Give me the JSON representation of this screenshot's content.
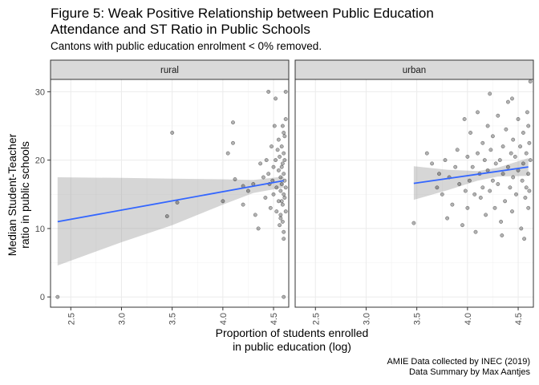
{
  "title_line1": "Figure 5: Weak Positive Relationship between Public Education",
  "title_line2": "Attendance and ST Ratio in Public Schools",
  "subtitle": "Cantons with public education enrolment < 0% removed.",
  "caption_line1": "AMIE Data collected by INEC (2019)",
  "caption_line2": "Data Summary by Max Aantjes",
  "chart_data": {
    "type": "scatter",
    "xlabel_line1": "Proportion of students enrolled",
    "xlabel_line2": "in public education (log)",
    "ylabel_line1": "Median Student-Teacher",
    "ylabel_line2": "ratio in public schools",
    "xlim": [
      2.3,
      4.65
    ],
    "ylim": [
      -1.5,
      31.8
    ],
    "x_ticks": [
      "2.5",
      "3.0",
      "3.5",
      "4.0",
      "4.5"
    ],
    "y_ticks": [
      "0",
      "10",
      "20",
      "30"
    ],
    "grid": true,
    "point_color": "#000000",
    "line_color": "#3366FF",
    "ribbon_color": "#999999",
    "panels": [
      {
        "name": "rural",
        "fit": {
          "x": [
            2.37,
            4.6
          ],
          "y": [
            11.0,
            17.0
          ]
        },
        "ribbon": {
          "x": [
            2.37,
            3.0,
            3.5,
            4.0,
            4.3,
            4.6
          ],
          "lower": [
            4.6,
            8.0,
            10.5,
            13.5,
            15.2,
            16.0
          ],
          "upper": [
            17.5,
            17.4,
            17.3,
            17.2,
            17.1,
            17.6
          ]
        },
        "points": [
          [
            2.37,
            0.0
          ],
          [
            3.5,
            24.0
          ],
          [
            3.45,
            11.8
          ],
          [
            3.55,
            13.8
          ],
          [
            4.0,
            14.0
          ],
          [
            4.05,
            21.0
          ],
          [
            4.1,
            25.5
          ],
          [
            4.1,
            22.5
          ],
          [
            4.12,
            17.2
          ],
          [
            4.2,
            16.2
          ],
          [
            4.2,
            13.5
          ],
          [
            4.25,
            15.5
          ],
          [
            4.3,
            16.5
          ],
          [
            4.32,
            12.0
          ],
          [
            4.35,
            10.0
          ],
          [
            4.37,
            19.5
          ],
          [
            4.4,
            17.5
          ],
          [
            4.42,
            14.5
          ],
          [
            4.43,
            20.0
          ],
          [
            4.45,
            30.0
          ],
          [
            4.45,
            18.0
          ],
          [
            4.46,
            16.5
          ],
          [
            4.47,
            13.0
          ],
          [
            4.48,
            22.0
          ],
          [
            4.49,
            17.0
          ],
          [
            4.5,
            15.0
          ],
          [
            4.5,
            19.0
          ],
          [
            4.51,
            25.0
          ],
          [
            4.52,
            29.0
          ],
          [
            4.52,
            20.0
          ],
          [
            4.53,
            12.5
          ],
          [
            4.53,
            16.0
          ],
          [
            4.54,
            21.5
          ],
          [
            4.55,
            23.0
          ],
          [
            4.55,
            18.5
          ],
          [
            4.55,
            14.0
          ],
          [
            4.56,
            10.5
          ],
          [
            4.56,
            20.5
          ],
          [
            4.57,
            17.5
          ],
          [
            4.57,
            15.5
          ],
          [
            4.57,
            12.0
          ],
          [
            4.58,
            22.0
          ],
          [
            4.58,
            19.0
          ],
          [
            4.58,
            16.5
          ],
          [
            4.59,
            13.5
          ],
          [
            4.59,
            11.0
          ],
          [
            4.59,
            25.0
          ],
          [
            4.6,
            18.0
          ],
          [
            4.6,
            15.0
          ],
          [
            4.6,
            21.0
          ],
          [
            4.6,
            9.5
          ],
          [
            4.6,
            8.5
          ],
          [
            4.61,
            17.0
          ],
          [
            4.61,
            20.0
          ],
          [
            4.61,
            14.5
          ],
          [
            4.62,
            26.0
          ],
          [
            4.62,
            16.0
          ],
          [
            4.62,
            12.5
          ],
          [
            4.62,
            30.0
          ],
          [
            4.6,
            0.0
          ],
          [
            4.61,
            23.5
          ],
          [
            4.59,
            19.5
          ],
          [
            4.58,
            14.0
          ],
          [
            4.57,
            11.5
          ],
          [
            4.6,
            24.0
          ]
        ]
      },
      {
        "name": "urban",
        "fit": {
          "x": [
            3.47,
            4.6
          ],
          "y": [
            16.6,
            19.0
          ]
        },
        "ribbon": {
          "x": [
            3.47,
            3.8,
            4.1,
            4.3,
            4.6
          ],
          "lower": [
            14.2,
            15.6,
            17.0,
            17.6,
            17.7
          ],
          "upper": [
            19.1,
            18.6,
            18.4,
            18.9,
            20.3
          ]
        },
        "points": [
          [
            3.47,
            10.8
          ],
          [
            3.6,
            21.0
          ],
          [
            3.65,
            19.5
          ],
          [
            3.7,
            16.0
          ],
          [
            3.72,
            18.0
          ],
          [
            3.75,
            15.0
          ],
          [
            3.78,
            20.0
          ],
          [
            3.8,
            11.5
          ],
          [
            3.82,
            17.5
          ],
          [
            3.85,
            13.5
          ],
          [
            3.88,
            19.0
          ],
          [
            3.9,
            21.5
          ],
          [
            3.92,
            16.5
          ],
          [
            3.95,
            10.5
          ],
          [
            3.97,
            26.0
          ],
          [
            3.98,
            15.5
          ],
          [
            4.0,
            20.5
          ],
          [
            4.0,
            13.0
          ],
          [
            4.02,
            17.0
          ],
          [
            4.03,
            24.0
          ],
          [
            4.05,
            19.0
          ],
          [
            4.07,
            15.0
          ],
          [
            4.08,
            9.5
          ],
          [
            4.1,
            21.0
          ],
          [
            4.1,
            27.0
          ],
          [
            4.12,
            18.0
          ],
          [
            4.13,
            14.5
          ],
          [
            4.15,
            22.5
          ],
          [
            4.15,
            16.0
          ],
          [
            4.17,
            20.0
          ],
          [
            4.18,
            12.0
          ],
          [
            4.2,
            25.0
          ],
          [
            4.2,
            18.5
          ],
          [
            4.22,
            29.7
          ],
          [
            4.22,
            15.5
          ],
          [
            4.23,
            21.5
          ],
          [
            4.25,
            17.0
          ],
          [
            4.25,
            23.5
          ],
          [
            4.27,
            13.0
          ],
          [
            4.28,
            19.5
          ],
          [
            4.3,
            26.5
          ],
          [
            4.3,
            16.5
          ],
          [
            4.32,
            20.0
          ],
          [
            4.33,
            11.0
          ],
          [
            4.35,
            22.0
          ],
          [
            4.35,
            18.0
          ],
          [
            4.37,
            14.0
          ],
          [
            4.38,
            24.5
          ],
          [
            4.4,
            19.0
          ],
          [
            4.4,
            28.5
          ],
          [
            4.42,
            16.0
          ],
          [
            4.43,
            21.0
          ],
          [
            4.44,
            12.5
          ],
          [
            4.45,
            23.0
          ],
          [
            4.45,
            17.5
          ],
          [
            4.47,
            20.5
          ],
          [
            4.48,
            15.0
          ],
          [
            4.5,
            26.0
          ],
          [
            4.5,
            18.5
          ],
          [
            4.52,
            22.0
          ],
          [
            4.53,
            10.0
          ],
          [
            4.54,
            17.0
          ],
          [
            4.55,
            24.0
          ],
          [
            4.55,
            19.5
          ],
          [
            4.57,
            14.5
          ],
          [
            4.58,
            21.0
          ],
          [
            4.58,
            16.0
          ],
          [
            4.59,
            27.0
          ],
          [
            4.6,
            18.0
          ],
          [
            4.6,
            13.0
          ],
          [
            4.61,
            22.5
          ],
          [
            4.61,
            15.5
          ],
          [
            4.62,
            31.5
          ],
          [
            4.62,
            20.0
          ],
          [
            4.6,
            25.0
          ],
          [
            4.56,
            8.5
          ],
          [
            4.44,
            29.0
          ],
          [
            4.34,
            9.0
          ]
        ]
      }
    ]
  }
}
